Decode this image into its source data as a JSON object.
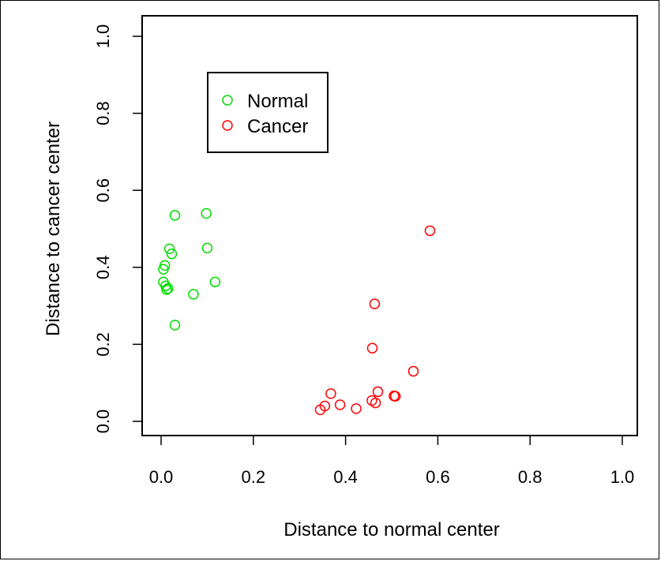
{
  "chart_data": {
    "type": "scatter",
    "title": "",
    "xlabel": "Distance to normal center",
    "ylabel": "Distance to cancer center",
    "xlim": [
      0.0,
      1.0
    ],
    "ylim": [
      0.0,
      1.0
    ],
    "x_ticks": [
      "0.0",
      "0.2",
      "0.4",
      "0.6",
      "0.8",
      "1.0"
    ],
    "y_ticks": [
      "0.0",
      "0.2",
      "0.4",
      "0.6",
      "0.8",
      "1.0"
    ],
    "grid": false,
    "legend_position": "top-left",
    "series": [
      {
        "name": "Normal",
        "color": "#00dd00",
        "marker": "open-circle",
        "points": [
          {
            "x": 0.03,
            "y": 0.535
          },
          {
            "x": 0.098,
            "y": 0.54
          },
          {
            "x": 0.018,
            "y": 0.448
          },
          {
            "x": 0.023,
            "y": 0.435
          },
          {
            "x": 0.1,
            "y": 0.45
          },
          {
            "x": 0.008,
            "y": 0.405
          },
          {
            "x": 0.005,
            "y": 0.395
          },
          {
            "x": 0.005,
            "y": 0.362
          },
          {
            "x": 0.01,
            "y": 0.352
          },
          {
            "x": 0.012,
            "y": 0.342
          },
          {
            "x": 0.015,
            "y": 0.345
          },
          {
            "x": 0.117,
            "y": 0.362
          },
          {
            "x": 0.07,
            "y": 0.33
          },
          {
            "x": 0.03,
            "y": 0.25
          }
        ]
      },
      {
        "name": "Cancer",
        "color": "#ff0000",
        "marker": "open-circle",
        "points": [
          {
            "x": 0.583,
            "y": 0.495
          },
          {
            "x": 0.463,
            "y": 0.305
          },
          {
            "x": 0.458,
            "y": 0.19
          },
          {
            "x": 0.547,
            "y": 0.13
          },
          {
            "x": 0.368,
            "y": 0.072
          },
          {
            "x": 0.47,
            "y": 0.077
          },
          {
            "x": 0.505,
            "y": 0.066
          },
          {
            "x": 0.508,
            "y": 0.065
          },
          {
            "x": 0.457,
            "y": 0.054
          },
          {
            "x": 0.465,
            "y": 0.048
          },
          {
            "x": 0.388,
            "y": 0.043
          },
          {
            "x": 0.355,
            "y": 0.04
          },
          {
            "x": 0.345,
            "y": 0.03
          },
          {
            "x": 0.423,
            "y": 0.033
          }
        ]
      }
    ]
  }
}
